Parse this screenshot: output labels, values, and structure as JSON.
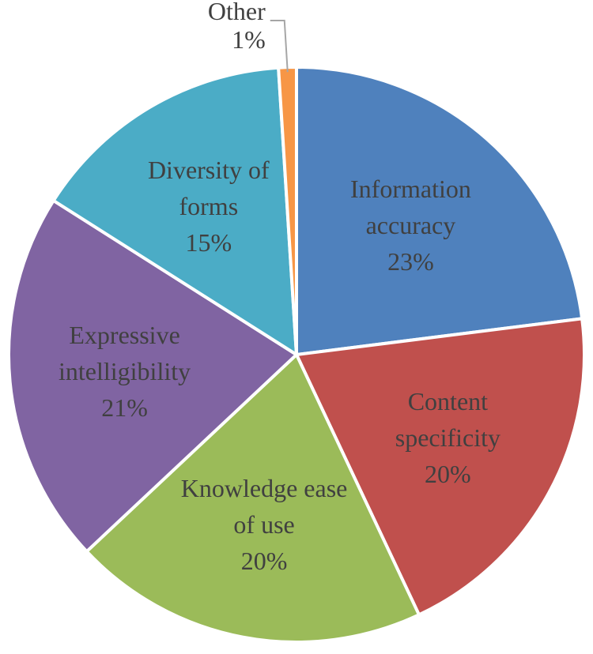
{
  "chart_data": {
    "type": "pie",
    "categories": [
      "Information accuracy",
      "Content specificity",
      "Knowledge ease of use",
      "Expressive intelligibility",
      "Diversity of forms",
      "Other"
    ],
    "values": [
      23,
      20,
      20,
      21,
      15,
      1
    ],
    "value_labels": [
      "23%",
      "20%",
      "20%",
      "21%",
      "15%",
      "1%"
    ],
    "colors": [
      "#4f81bd",
      "#c0504d",
      "#9bbb59",
      "#8064a2",
      "#4bacc6",
      "#f79646"
    ]
  }
}
